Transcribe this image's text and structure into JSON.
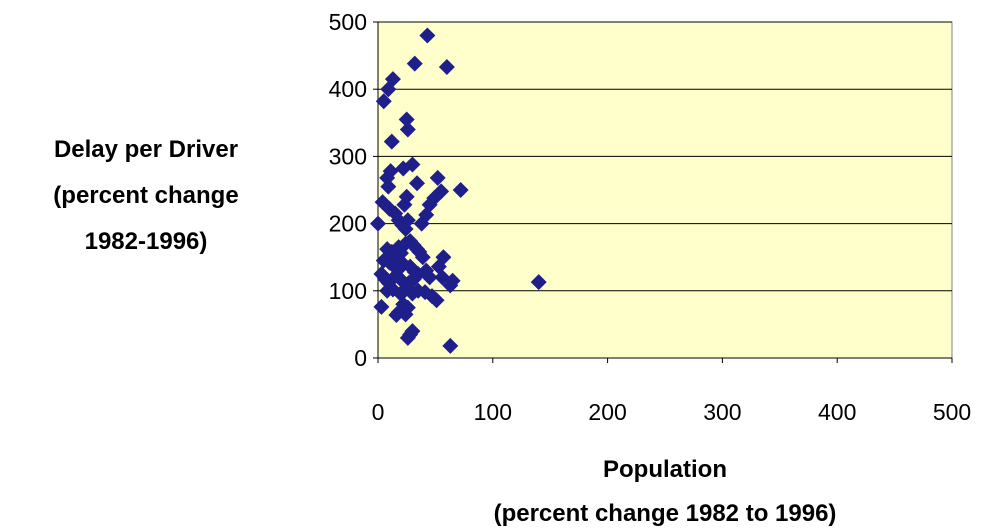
{
  "chart_data": {
    "type": "scatter",
    "title": "",
    "xlabel": [
      "Population",
      "(percent change 1982 to 1996)"
    ],
    "ylabel": [
      "Delay per Driver",
      "(percent change",
      "1982-1996)"
    ],
    "xlim": [
      0,
      500
    ],
    "ylim": [
      0,
      500
    ],
    "xticks": [
      0,
      100,
      200,
      300,
      400,
      500
    ],
    "yticks": [
      0,
      100,
      200,
      300,
      400,
      500
    ],
    "grid": "horizontal",
    "legend": "none",
    "colors": {
      "plot_background": "#FFFFCC",
      "marker": "#1F1F8C",
      "gridline": "#000000"
    },
    "series": [
      {
        "points": [
          [
            43,
            480
          ],
          [
            60,
            433
          ],
          [
            32,
            438
          ],
          [
            13,
            415
          ],
          [
            9,
            400
          ],
          [
            5,
            382
          ],
          [
            25,
            355
          ],
          [
            26,
            340
          ],
          [
            12,
            322
          ],
          [
            30,
            288
          ],
          [
            22,
            282
          ],
          [
            11,
            278
          ],
          [
            8,
            268
          ],
          [
            9,
            255
          ],
          [
            52,
            268
          ],
          [
            72,
            250
          ],
          [
            34,
            260
          ],
          [
            55,
            248
          ],
          [
            49,
            238
          ],
          [
            45,
            228
          ],
          [
            0,
            200
          ],
          [
            4,
            232
          ],
          [
            10,
            222
          ],
          [
            15,
            215
          ],
          [
            25,
            240
          ],
          [
            23,
            228
          ],
          [
            18,
            205
          ],
          [
            21,
            198
          ],
          [
            26,
            205
          ],
          [
            24,
            192
          ],
          [
            38,
            200
          ],
          [
            42,
            213
          ],
          [
            8,
            162
          ],
          [
            12,
            158
          ],
          [
            15,
            150
          ],
          [
            18,
            165
          ],
          [
            20,
            156
          ],
          [
            24,
            170
          ],
          [
            28,
            174
          ],
          [
            31,
            168
          ],
          [
            34,
            162
          ],
          [
            36,
            158
          ],
          [
            39,
            150
          ],
          [
            57,
            150
          ],
          [
            5,
            145
          ],
          [
            10,
            142
          ],
          [
            13,
            138
          ],
          [
            18,
            132
          ],
          [
            22,
            140
          ],
          [
            28,
            136
          ],
          [
            32,
            128
          ],
          [
            35,
            125
          ],
          [
            42,
            130
          ],
          [
            53,
            136
          ],
          [
            56,
            120
          ],
          [
            3,
            125
          ],
          [
            6,
            118
          ],
          [
            9,
            112
          ],
          [
            14,
            120
          ],
          [
            21,
            115
          ],
          [
            27,
            112
          ],
          [
            31,
            117
          ],
          [
            45,
            120
          ],
          [
            65,
            115
          ],
          [
            63,
            108
          ],
          [
            140,
            113
          ],
          [
            8,
            100
          ],
          [
            13,
            102
          ],
          [
            20,
            95
          ],
          [
            25,
            105
          ],
          [
            30,
            96
          ],
          [
            35,
            100
          ],
          [
            41,
            98
          ],
          [
            47,
            92
          ],
          [
            51,
            86
          ],
          [
            22,
            80
          ],
          [
            26,
            75
          ],
          [
            3,
            76
          ],
          [
            18,
            68
          ],
          [
            24,
            65
          ],
          [
            16,
            64
          ],
          [
            30,
            40
          ],
          [
            28,
            35
          ],
          [
            26,
            30
          ],
          [
            63,
            18
          ]
        ]
      }
    ]
  }
}
